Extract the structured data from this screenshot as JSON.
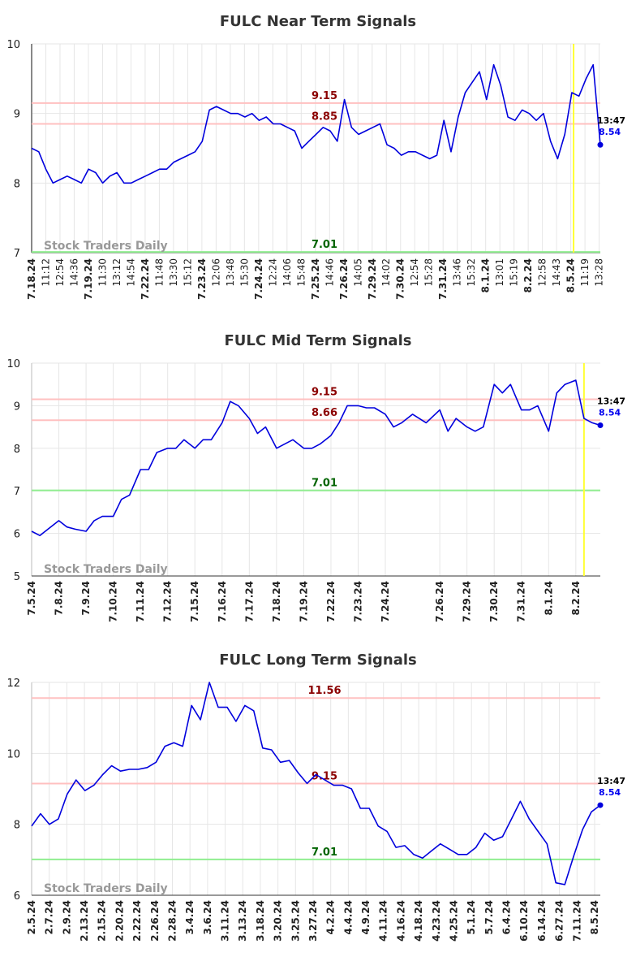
{
  "chart_data": [
    {
      "type": "line",
      "title": "FULC Near Term Signals",
      "watermark": "Stock Traders Daily",
      "ylim": [
        7,
        10
      ],
      "yticks": [
        "7",
        "8",
        "9",
        "10"
      ],
      "x_labels": [
        "7.18.24",
        "11:12",
        "12:54",
        "14:36",
        "7.19.24",
        "11:30",
        "13:12",
        "14:54",
        "7.22.24",
        "11:48",
        "13:30",
        "15:12",
        "7.23.24",
        "12:06",
        "13:48",
        "15:30",
        "7.24.24",
        "12:24",
        "14:06",
        "15:48",
        "7.25.24",
        "14:46",
        "7.26.24",
        "14:05",
        "7.29.24",
        "14:02",
        "7.30.24",
        "12:54",
        "15:28",
        "7.31.24",
        "13:46",
        "15:32",
        "8.1.24",
        "13:01",
        "15:19",
        "8.2.24",
        "12:58",
        "14:43",
        "8.5.24",
        "11:19",
        "13:28"
      ],
      "x_label_bold": [
        true,
        false,
        false,
        false,
        true,
        false,
        false,
        false,
        true,
        false,
        false,
        false,
        true,
        false,
        false,
        false,
        true,
        false,
        false,
        false,
        true,
        false,
        true,
        false,
        true,
        false,
        true,
        false,
        false,
        true,
        false,
        false,
        true,
        false,
        false,
        true,
        false,
        false,
        true,
        false,
        false
      ],
      "levels": [
        {
          "label": "9.15",
          "value": 9.15,
          "kind": "resistance"
        },
        {
          "label": "8.85",
          "value": 8.85,
          "kind": "resistance"
        },
        {
          "label": "7.01",
          "value": 7.01,
          "kind": "support"
        }
      ],
      "marker_position": 0.953,
      "last_point": {
        "time": "13:47",
        "value": "8.54"
      },
      "series": [
        {
          "x": [
            0,
            1,
            2,
            3,
            4,
            5,
            6,
            7,
            8,
            9,
            10,
            11,
            12,
            13,
            14,
            15,
            16,
            17,
            18,
            19,
            20,
            21,
            22,
            23,
            24,
            25,
            26,
            27,
            28,
            29,
            30,
            31,
            32,
            33,
            34,
            35,
            36,
            37,
            38,
            39,
            40,
            41,
            42,
            43,
            44,
            45,
            46,
            47,
            48,
            49,
            50,
            51,
            52,
            53,
            54,
            55,
            56,
            57,
            58,
            59,
            60,
            61,
            62,
            63,
            64,
            65,
            66,
            67,
            68,
            69,
            70,
            71,
            72,
            73,
            74,
            75,
            76,
            77,
            78,
            79,
            80
          ],
          "values": [
            8.5,
            8.45,
            8.2,
            8.0,
            8.05,
            8.1,
            8.05,
            8.0,
            8.2,
            8.15,
            8.0,
            8.1,
            8.15,
            8.0,
            8.0,
            8.05,
            8.1,
            8.15,
            8.2,
            8.2,
            8.3,
            8.35,
            8.4,
            8.45,
            8.6,
            9.05,
            9.1,
            9.05,
            9.0,
            9.0,
            8.95,
            9.0,
            8.9,
            8.95,
            8.85,
            8.85,
            8.8,
            8.75,
            8.5,
            8.6,
            8.7,
            8.8,
            8.75,
            8.6,
            9.2,
            8.8,
            8.7,
            8.75,
            8.8,
            8.85,
            8.55,
            8.5,
            8.4,
            8.45,
            8.45,
            8.4,
            8.35,
            8.4,
            8.9,
            8.45,
            8.95,
            9.3,
            9.45,
            9.6,
            9.2,
            9.7,
            9.4,
            8.95,
            8.9,
            9.05,
            9.0,
            8.9,
            9.0,
            8.6,
            8.35,
            8.7,
            9.3,
            9.25,
            9.5,
            9.7,
            8.55
          ]
        }
      ]
    },
    {
      "type": "line",
      "title": "FULC Mid Term Signals",
      "watermark": "Stock Traders Daily",
      "ylim": [
        5,
        10
      ],
      "yticks": [
        "5",
        "6",
        "7",
        "8",
        "9",
        "10"
      ],
      "x_labels": [
        "7.5.24",
        "7.8.24",
        "7.9.24",
        "7.10.24",
        "7.11.24",
        "7.12.24",
        "7.15.24",
        "7.16.24",
        "7.17.24",
        "7.18.24",
        "7.19.24",
        "7.22.24",
        "7.23.24",
        "7.24.24",
        "7.26.24",
        "7.29.24",
        "7.30.24",
        "7.31.24",
        "8.1.24",
        "8.2.24"
      ],
      "x_label_positions": [
        0,
        1,
        2,
        3,
        4,
        5,
        6,
        7,
        8,
        9,
        10,
        11,
        12,
        13,
        15,
        16,
        17,
        18,
        19,
        20
      ],
      "levels": [
        {
          "label": "9.15",
          "value": 9.15,
          "kind": "resistance"
        },
        {
          "label": "8.66",
          "value": 8.66,
          "kind": "resistance"
        },
        {
          "label": "7.01",
          "value": 7.01,
          "kind": "support"
        }
      ],
      "marker_position": 20.3,
      "last_point": {
        "time": "13:47",
        "value": "8.54"
      },
      "series": [
        {
          "x": [
            0,
            0.3,
            0.6,
            1.0,
            1.3,
            1.6,
            2.0,
            2.3,
            2.6,
            3.0,
            3.3,
            3.6,
            4.0,
            4.3,
            4.6,
            5.0,
            5.3,
            5.6,
            6.0,
            6.3,
            6.6,
            7.0,
            7.3,
            7.6,
            8.0,
            8.3,
            8.6,
            9.0,
            9.3,
            9.6,
            10.0,
            10.3,
            10.6,
            11.0,
            11.3,
            11.6,
            12.0,
            12.3,
            12.6,
            13.0,
            13.3,
            13.6,
            14.0,
            14.5,
            15.0,
            15.3,
            15.6,
            16.0,
            16.3,
            16.6,
            17.0,
            17.3,
            17.6,
            18.0,
            18.3,
            18.6,
            19.0,
            19.3,
            19.6,
            20.0,
            20.3,
            20.6,
            20.9
          ],
          "values": [
            6.05,
            5.95,
            6.1,
            6.3,
            6.15,
            6.1,
            6.05,
            6.3,
            6.4,
            6.4,
            6.8,
            6.9,
            7.5,
            7.5,
            7.9,
            8.0,
            8.0,
            8.2,
            8.0,
            8.2,
            8.2,
            8.6,
            9.1,
            9.0,
            8.7,
            8.35,
            8.5,
            8.0,
            8.1,
            8.2,
            8.0,
            8.0,
            8.1,
            8.3,
            8.6,
            9.0,
            9.0,
            8.95,
            8.95,
            8.8,
            8.5,
            8.6,
            8.8,
            8.6,
            8.9,
            8.4,
            8.7,
            8.5,
            8.4,
            8.5,
            9.5,
            9.3,
            9.5,
            8.9,
            8.9,
            9.0,
            8.4,
            9.3,
            9.5,
            9.6,
            8.7,
            8.6,
            8.54
          ]
        }
      ]
    },
    {
      "type": "line",
      "title": "FULC Long Term Signals",
      "watermark": "Stock Traders Daily",
      "ylim": [
        6,
        12
      ],
      "yticks": [
        "6",
        "8",
        "10",
        "12"
      ],
      "x_labels": [
        "2.5.24",
        "2.7.24",
        "2.9.24",
        "2.13.24",
        "2.15.24",
        "2.20.24",
        "2.22.24",
        "2.26.24",
        "2.28.24",
        "3.4.24",
        "3.6.24",
        "3.11.24",
        "3.13.24",
        "3.18.24",
        "3.20.24",
        "3.25.24",
        "3.27.24",
        "4.2.24",
        "4.4.24",
        "4.9.24",
        "4.11.24",
        "4.16.24",
        "4.18.24",
        "4.23.24",
        "4.25.24",
        "5.1.24",
        "5.7.24",
        "6.4.24",
        "6.10.24",
        "6.14.24",
        "6.27.24",
        "7.11.24",
        "8.5.24"
      ],
      "levels": [
        {
          "label": "11.56",
          "value": 11.56,
          "kind": "resistance"
        },
        {
          "label": "9.15",
          "value": 9.15,
          "kind": "resistance"
        },
        {
          "label": "7.01",
          "value": 7.01,
          "kind": "support"
        }
      ],
      "last_point": {
        "time": "13:47",
        "value": "8.54"
      },
      "series": [
        {
          "x": [
            0,
            0.5,
            1,
            1.5,
            2,
            2.5,
            3,
            3.5,
            4,
            4.5,
            5,
            5.5,
            6,
            6.5,
            7,
            7.5,
            8,
            8.5,
            9,
            9.5,
            10,
            10.5,
            11,
            11.5,
            12,
            12.5,
            13,
            13.5,
            14,
            14.5,
            15,
            15.5,
            16,
            16.5,
            17,
            17.5,
            18,
            18.5,
            19,
            19.5,
            20,
            20.5,
            21,
            21.5,
            22,
            22.5,
            23,
            23.5,
            24,
            24.5,
            25,
            25.5,
            26,
            26.5,
            27,
            27.5,
            28,
            28.5,
            29,
            29.5,
            30,
            30.5,
            31,
            31.5,
            32
          ],
          "values": [
            7.95,
            8.3,
            8.0,
            8.15,
            8.85,
            9.25,
            8.95,
            9.1,
            9.4,
            9.65,
            9.5,
            9.55,
            9.55,
            9.6,
            9.75,
            10.2,
            10.3,
            10.2,
            11.35,
            10.95,
            12.0,
            11.3,
            11.3,
            10.9,
            11.35,
            11.2,
            10.15,
            10.1,
            9.75,
            9.8,
            9.45,
            9.15,
            9.4,
            9.25,
            9.1,
            9.1,
            9.0,
            8.45,
            8.45,
            7.95,
            7.8,
            7.35,
            7.4,
            7.15,
            7.05,
            7.25,
            7.45,
            7.3,
            7.15,
            7.15,
            7.35,
            7.75,
            7.55,
            7.65,
            8.15,
            8.65,
            8.15,
            7.8,
            7.45,
            6.35,
            6.3,
            7.1,
            7.85,
            8.35,
            8.54
          ]
        }
      ]
    }
  ]
}
